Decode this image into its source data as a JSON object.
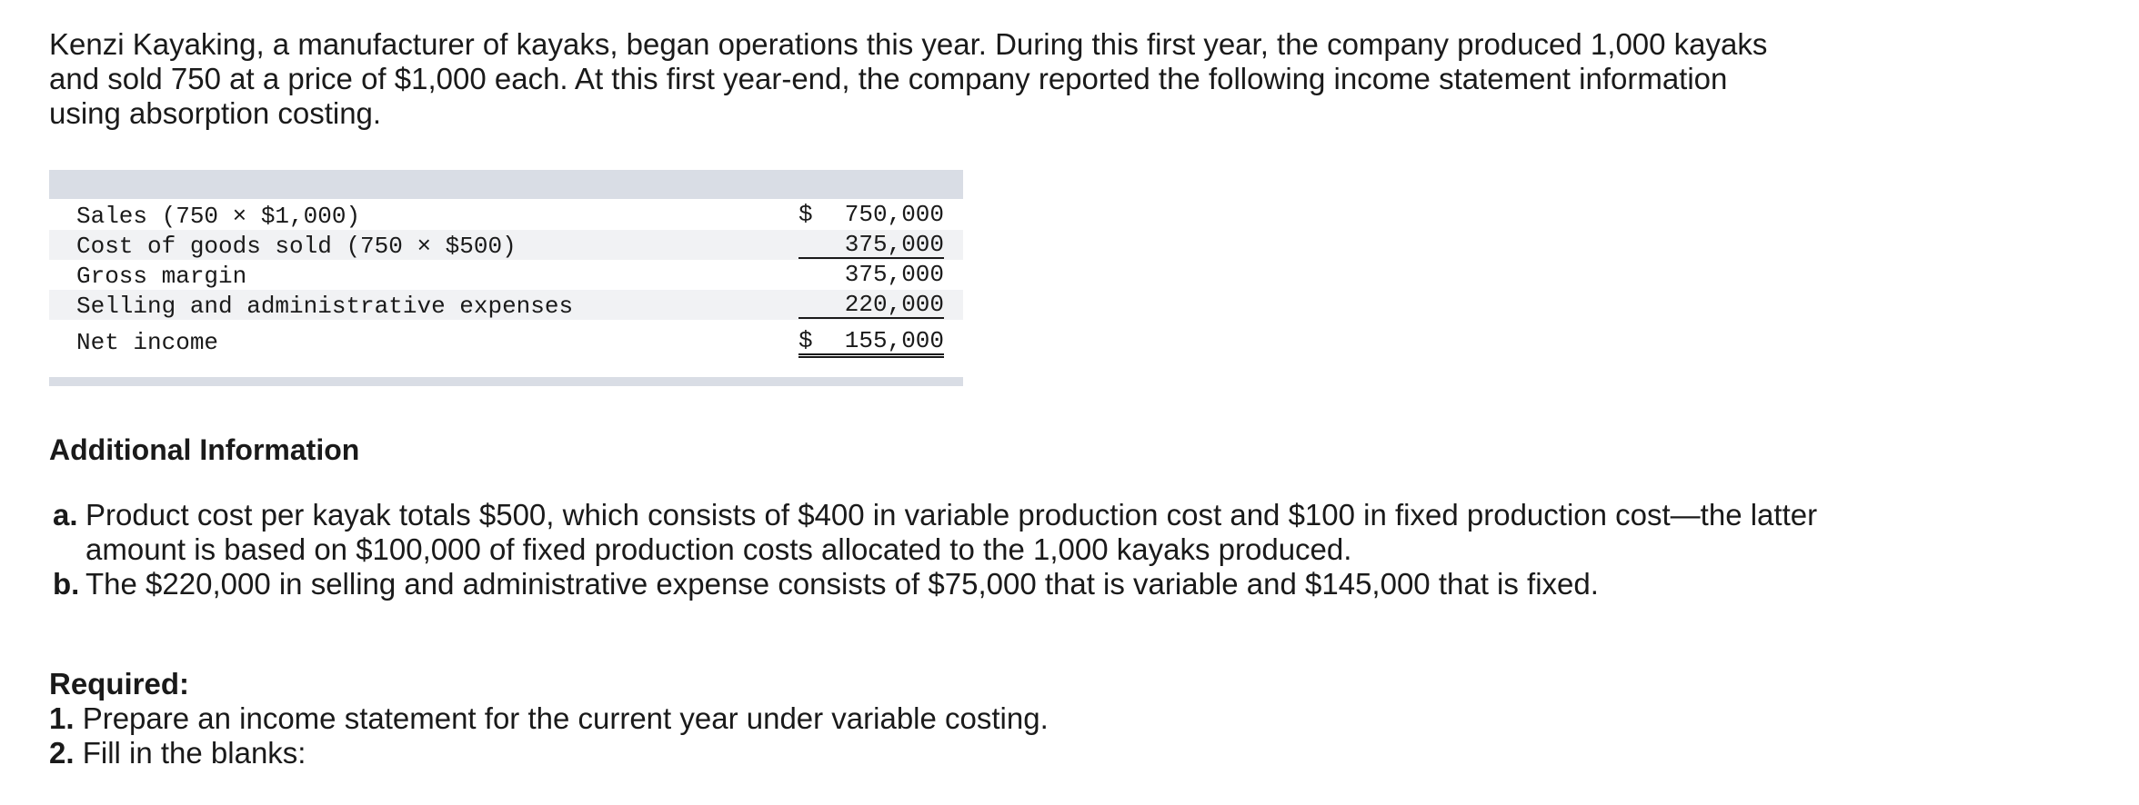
{
  "intro": "Kenzi Kayaking, a manufacturer of kayaks, began operations this year. During this first year, the company produced 1,000 kayaks and sold 750 at a price of $1,000 each. At this first year-end, the company reported the following income statement information using absorption costing.",
  "statement": {
    "rows": [
      {
        "label": "Sales (750 × $1,000)",
        "dollar": "$",
        "amount": "750,000"
      },
      {
        "label": "Cost of goods sold (750 × $500)",
        "dollar": "",
        "amount": "375,000"
      },
      {
        "label": "Gross margin",
        "dollar": "",
        "amount": "375,000"
      },
      {
        "label": "Selling and administrative expenses",
        "dollar": "",
        "amount": "220,000"
      },
      {
        "label": "Net income",
        "dollar": "$",
        "amount": "155,000"
      }
    ]
  },
  "additional": {
    "heading": "Additional Information",
    "items": [
      {
        "marker": "a.",
        "text": "Product cost per kayak totals $500, which consists of $400 in variable production cost and $100 in fixed production cost—the latter amount is based on $100,000 of fixed production costs allocated to the 1,000 kayaks produced."
      },
      {
        "marker": "b.",
        "text": "The $220,000 in selling and administrative expense consists of $75,000 that is variable and $145,000 that is fixed."
      }
    ]
  },
  "required": {
    "title": "Required:",
    "items": [
      {
        "marker": "1.",
        "text": "Prepare an income statement for the current year under variable costing."
      },
      {
        "marker": "2.",
        "text": "Fill in the blanks:"
      }
    ]
  }
}
